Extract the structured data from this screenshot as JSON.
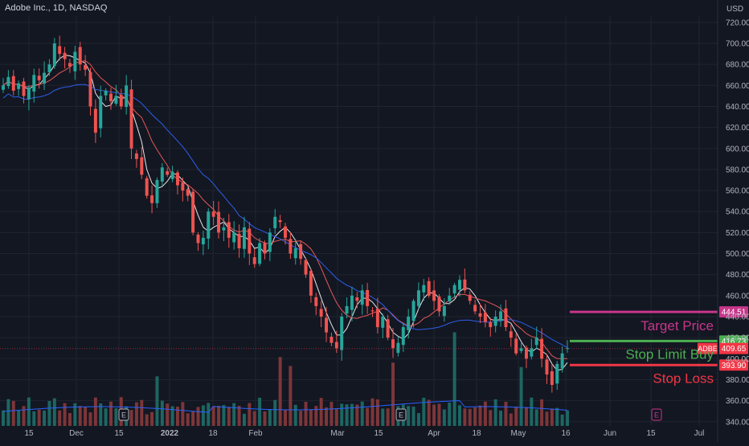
{
  "header": {
    "symbol_title": "Adobe Inc., 1D, NASDAQ",
    "currency": "USD"
  },
  "colors": {
    "background": "#131722",
    "grid": "#1f2430",
    "axis_text": "#b2b5be",
    "candle_up": "#26a69a",
    "candle_down": "#ef5350",
    "volume_up": "#1f6f69",
    "volume_down": "#8a3a3b",
    "ma_fast": "#e6e6e6",
    "ma_mid": "#e45757",
    "ma_slow": "#2d5ee8",
    "volume_ma": "#2962ff",
    "target": "#c7368a",
    "stop_buy": "#4caf50",
    "stop_loss": "#f23645",
    "current": "#f23645"
  },
  "chart_data": {
    "type": "candlestick",
    "title": "Adobe Inc., 1D, NASDAQ",
    "y_axis": {
      "unit": "USD",
      "ylim": [
        336,
        726
      ],
      "ticks": [
        340,
        360,
        380,
        400,
        420,
        440,
        460,
        480,
        500,
        520,
        540,
        560,
        580,
        600,
        620,
        640,
        660,
        680,
        700,
        720
      ],
      "tick_labels": [
        "340.00",
        "360.00",
        "380.00",
        "400.00",
        "420.00",
        "440.00",
        "460.00",
        "480.00",
        "500.00",
        "520.00",
        "540.00",
        "560.00",
        "580.00",
        "600.00",
        "620.00",
        "640.00",
        "660.00",
        "680.00",
        "700.00",
        "720.00"
      ]
    },
    "x_axis": {
      "labels": [
        "15",
        "Dec",
        "15",
        "2022",
        "18",
        "Feb",
        "Mar",
        "15",
        "Apr",
        "18",
        "May",
        "16",
        "Jun",
        "15",
        "Jul"
      ],
      "bold_labels": [
        "2022"
      ]
    },
    "grid": "on",
    "candles_approx_close": [
      660,
      668,
      655,
      662,
      650,
      658,
      670,
      665,
      672,
      680,
      700,
      690,
      685,
      678,
      692,
      680,
      675,
      640,
      615,
      650,
      655,
      645,
      650,
      640,
      660,
      600,
      590,
      575,
      555,
      548,
      570,
      582,
      575,
      578,
      565,
      560,
      555,
      520,
      510,
      515,
      540,
      535,
      520,
      525,
      515,
      520,
      505,
      525,
      500,
      490,
      510,
      500,
      520,
      535,
      530,
      515,
      500,
      505,
      495,
      480,
      460,
      450,
      440,
      425,
      415,
      410,
      440,
      450,
      460,
      455,
      465,
      450,
      445,
      430,
      440,
      420,
      410,
      415,
      430,
      440,
      455,
      465,
      470,
      460,
      455,
      445,
      450,
      460,
      470,
      475,
      465,
      455,
      445,
      440,
      435,
      430,
      440,
      445,
      430,
      420,
      405,
      410,
      400,
      410,
      420,
      400,
      385,
      375,
      395,
      405,
      410
    ],
    "moving_averages": [
      {
        "name": "MA fast",
        "color": "#e6e6e6"
      },
      {
        "name": "MA mid",
        "color": "#e45757"
      },
      {
        "name": "MA slow",
        "color": "#2d5ee8"
      }
    ],
    "levels": [
      {
        "name": "Target Price",
        "value": 444.51,
        "label": "444.51",
        "color": "#c7368a"
      },
      {
        "name": "Stop Limit Buy",
        "value": 416.73,
        "label": "416.73",
        "color": "#4caf50"
      },
      {
        "name": "Stop Loss",
        "value": 393.9,
        "label": "393.90",
        "color": "#f23645"
      }
    ],
    "current_price": {
      "symbol": "ADBE",
      "value": 409.65,
      "label": "409.65"
    },
    "earnings_markers": [
      "E",
      "E",
      "E"
    ]
  },
  "annotations": {
    "target_price": "Target Price",
    "stop_limit_buy": "Stop Limit Buy",
    "stop_loss": "Stop Loss"
  }
}
